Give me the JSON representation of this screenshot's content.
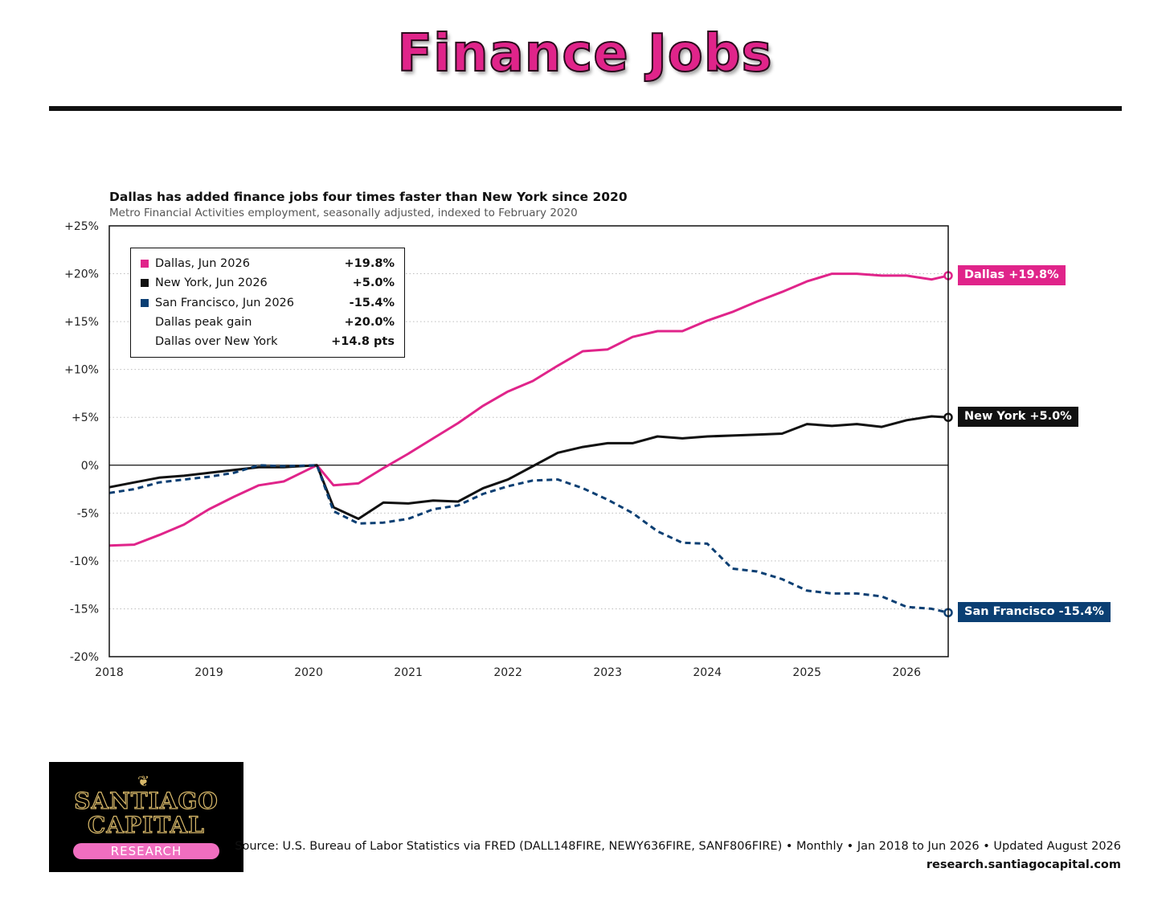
{
  "header": {
    "title": "Finance Jobs"
  },
  "chart_data": {
    "type": "line",
    "title": "Dallas has added finance jobs four times faster than New York since 2020",
    "subtitle": "Metro Financial Activities employment, seasonally adjusted, indexed to February 2020",
    "xlim": [
      2018.0,
      2026.417
    ],
    "ylim": [
      -20,
      25
    ],
    "x_ticks": [
      2018,
      2019,
      2020,
      2021,
      2022,
      2023,
      2024,
      2025,
      2026
    ],
    "y_ticks": [
      25,
      20,
      15,
      10,
      5,
      0,
      -5,
      -10,
      -15,
      -20
    ],
    "y_tick_labels": [
      "+25%",
      "+20%",
      "+15%",
      "+10%",
      "+5%",
      "0%",
      "-5%",
      "-10%",
      "-15%",
      "-20%"
    ],
    "grid": "horizontal dotted",
    "zero_line": true,
    "series": [
      {
        "name": "Dallas",
        "color": "#e0248a",
        "style": "solid",
        "end_label": "Dallas +19.8%",
        "points": [
          [
            2018.0,
            -8.4
          ],
          [
            2018.25,
            -8.3
          ],
          [
            2018.5,
            -7.3
          ],
          [
            2018.75,
            -6.2
          ],
          [
            2019.0,
            -4.6
          ],
          [
            2019.25,
            -3.3
          ],
          [
            2019.5,
            -2.1
          ],
          [
            2019.75,
            -1.7
          ],
          [
            2020.083,
            0.0
          ],
          [
            2020.25,
            -2.1
          ],
          [
            2020.5,
            -1.9
          ],
          [
            2020.75,
            -0.3
          ],
          [
            2021.0,
            1.2
          ],
          [
            2021.25,
            2.8
          ],
          [
            2021.5,
            4.4
          ],
          [
            2021.75,
            6.2
          ],
          [
            2022.0,
            7.7
          ],
          [
            2022.25,
            8.8
          ],
          [
            2022.5,
            10.4
          ],
          [
            2022.75,
            11.9
          ],
          [
            2023.0,
            12.1
          ],
          [
            2023.25,
            13.4
          ],
          [
            2023.5,
            14.0
          ],
          [
            2023.75,
            14.0
          ],
          [
            2024.0,
            15.1
          ],
          [
            2024.25,
            16.0
          ],
          [
            2024.5,
            17.1
          ],
          [
            2024.75,
            18.1
          ],
          [
            2025.0,
            19.2
          ],
          [
            2025.25,
            20.0
          ],
          [
            2025.5,
            20.0
          ],
          [
            2025.75,
            19.8
          ],
          [
            2026.0,
            19.8
          ],
          [
            2026.25,
            19.4
          ],
          [
            2026.417,
            19.8
          ]
        ]
      },
      {
        "name": "New York",
        "color": "#111111",
        "style": "solid",
        "end_label": "New York +5.0%",
        "points": [
          [
            2018.0,
            -2.3
          ],
          [
            2018.25,
            -1.8
          ],
          [
            2018.5,
            -1.3
          ],
          [
            2018.75,
            -1.1
          ],
          [
            2019.0,
            -0.8
          ],
          [
            2019.25,
            -0.5
          ],
          [
            2019.5,
            -0.2
          ],
          [
            2019.75,
            -0.2
          ],
          [
            2020.083,
            0.0
          ],
          [
            2020.25,
            -4.4
          ],
          [
            2020.5,
            -5.6
          ],
          [
            2020.75,
            -3.9
          ],
          [
            2021.0,
            -4.0
          ],
          [
            2021.25,
            -3.7
          ],
          [
            2021.5,
            -3.8
          ],
          [
            2021.75,
            -2.4
          ],
          [
            2022.0,
            -1.5
          ],
          [
            2022.25,
            -0.1
          ],
          [
            2022.5,
            1.3
          ],
          [
            2022.75,
            1.9
          ],
          [
            2023.0,
            2.3
          ],
          [
            2023.25,
            2.3
          ],
          [
            2023.5,
            3.0
          ],
          [
            2023.75,
            2.8
          ],
          [
            2024.0,
            3.0
          ],
          [
            2024.25,
            3.1
          ],
          [
            2024.5,
            3.2
          ],
          [
            2024.75,
            3.3
          ],
          [
            2025.0,
            4.3
          ],
          [
            2025.25,
            4.1
          ],
          [
            2025.5,
            4.3
          ],
          [
            2025.75,
            4.0
          ],
          [
            2026.0,
            4.7
          ],
          [
            2026.25,
            5.1
          ],
          [
            2026.417,
            5.0
          ]
        ]
      },
      {
        "name": "San Francisco",
        "color": "#0b3f73",
        "style": "dashed",
        "end_label": "San Francisco -15.4%",
        "points": [
          [
            2018.0,
            -2.9
          ],
          [
            2018.25,
            -2.5
          ],
          [
            2018.5,
            -1.8
          ],
          [
            2018.75,
            -1.5
          ],
          [
            2019.0,
            -1.2
          ],
          [
            2019.25,
            -0.8
          ],
          [
            2019.5,
            0.0
          ],
          [
            2019.75,
            -0.1
          ],
          [
            2020.083,
            0.0
          ],
          [
            2020.25,
            -4.8
          ],
          [
            2020.5,
            -6.1
          ],
          [
            2020.75,
            -6.0
          ],
          [
            2021.0,
            -5.6
          ],
          [
            2021.25,
            -4.6
          ],
          [
            2021.5,
            -4.2
          ],
          [
            2021.75,
            -3.0
          ],
          [
            2022.0,
            -2.2
          ],
          [
            2022.25,
            -1.6
          ],
          [
            2022.5,
            -1.5
          ],
          [
            2022.75,
            -2.4
          ],
          [
            2023.0,
            -3.6
          ],
          [
            2023.25,
            -5.0
          ],
          [
            2023.5,
            -6.9
          ],
          [
            2023.75,
            -8.1
          ],
          [
            2024.0,
            -8.2
          ],
          [
            2024.25,
            -10.8
          ],
          [
            2024.5,
            -11.1
          ],
          [
            2024.75,
            -11.9
          ],
          [
            2025.0,
            -13.1
          ],
          [
            2025.25,
            -13.4
          ],
          [
            2025.5,
            -13.4
          ],
          [
            2025.75,
            -13.7
          ],
          [
            2026.0,
            -14.8
          ],
          [
            2026.25,
            -15.0
          ],
          [
            2026.417,
            -15.4
          ]
        ]
      }
    ],
    "legend": {
      "placement": "top-left",
      "rows": [
        {
          "label": "Dallas, Jun 2026",
          "value": "+19.8%",
          "color": "#e0248a"
        },
        {
          "label": "New York, Jun 2026",
          "value": "+5.0%",
          "color": "#111111"
        },
        {
          "label": "San Francisco, Jun 2026",
          "value": "-15.4%",
          "color": "#0b3f73"
        },
        {
          "label": "Dallas peak gain",
          "value": "+20.0%",
          "color": ""
        },
        {
          "label": "Dallas over New York",
          "value": "+14.8 pts",
          "color": ""
        }
      ]
    }
  },
  "footer": {
    "source": "Source: U.S. Bureau of Labor Statistics via FRED (DALL148FIRE, NEWY636FIRE, SANF806FIRE) • Monthly • Jan 2018 to Jun 2026 • Updated August 2026",
    "url": "research.santiagocapital.com"
  },
  "logo": {
    "line1": "SANTIAGO",
    "line2": "CAPITAL",
    "line3": "RESEARCH"
  }
}
